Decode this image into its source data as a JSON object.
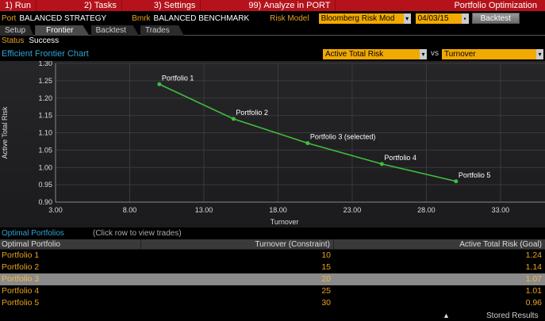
{
  "menu": {
    "items": [
      {
        "num": "1)",
        "label": "Run"
      },
      {
        "num": "2)",
        "label": "Tasks"
      },
      {
        "num": "3)",
        "label": "Settings"
      },
      {
        "num": "99)",
        "label": "Analyze in PORT"
      }
    ],
    "title": "Portfolio Optimization"
  },
  "header": {
    "port_label": "Port",
    "port_value": "BALANCED STRATEGY",
    "bmrk_label": "Bmrk",
    "bmrk_value": "BALANCED BENCHMARK",
    "risk_label": "Risk Model",
    "risk_value": "Bloomberg Risk Mod",
    "date_value": "04/03/15",
    "backtest_button": "Backtest"
  },
  "tabs": [
    {
      "label": "Setup",
      "active": false
    },
    {
      "label": "Frontier",
      "active": true
    },
    {
      "label": "Backtest",
      "active": false
    },
    {
      "label": "Trades",
      "active": false
    }
  ],
  "status": {
    "label": "Status",
    "value": "Success"
  },
  "chart_header": {
    "title": "Efficient Frontier Chart",
    "y_select": "Active Total Risk",
    "vs": "vs",
    "x_select": "Turnover"
  },
  "chart_data": {
    "type": "line",
    "xlabel": "Turnover",
    "ylabel": "Active Total Risk",
    "xlim": [
      3.0,
      36.0
    ],
    "ylim": [
      0.9,
      1.3
    ],
    "xticks": [
      "3.00",
      "8.00",
      "13.00",
      "18.00",
      "23.00",
      "28.00",
      "33.00"
    ],
    "yticks": [
      "0.90",
      "0.95",
      "1.00",
      "1.05",
      "1.10",
      "1.15",
      "1.20",
      "1.25",
      "1.30"
    ],
    "series": [
      {
        "x": [
          10,
          15,
          20,
          25,
          30
        ],
        "y": [
          1.24,
          1.14,
          1.07,
          1.01,
          0.96
        ],
        "labels": [
          "Portfolio 1",
          "Portfolio 2",
          "Portfolio 3 (selected)",
          "Portfolio 4",
          "Portfolio 5"
        ]
      }
    ],
    "line_color": "#3fbf3f",
    "grid": true
  },
  "optimal": {
    "title": "Optimal Portfolios",
    "hint": "(Click row to view trades)",
    "columns": [
      "Optimal Portfolio",
      "Turnover (Constraint)",
      "Active Total Risk (Goal)"
    ],
    "rows": [
      {
        "name": "Portfolio 1",
        "turnover": "10",
        "risk": "1.24",
        "selected": false
      },
      {
        "name": "Portfolio 2",
        "turnover": "15",
        "risk": "1.14",
        "selected": false
      },
      {
        "name": "Portfolio 3",
        "turnover": "20",
        "risk": "1.07",
        "selected": true
      },
      {
        "name": "Portfolio 4",
        "turnover": "25",
        "risk": "1.01",
        "selected": false
      },
      {
        "name": "Portfolio 5",
        "turnover": "30",
        "risk": "0.96",
        "selected": false
      }
    ]
  },
  "footer": {
    "stored": "Stored Results"
  },
  "colors": {
    "menu_red": "#b5121b",
    "amber": "#e8a020",
    "accent_blue": "#2fa3d6",
    "yellow": "#f2a900"
  }
}
